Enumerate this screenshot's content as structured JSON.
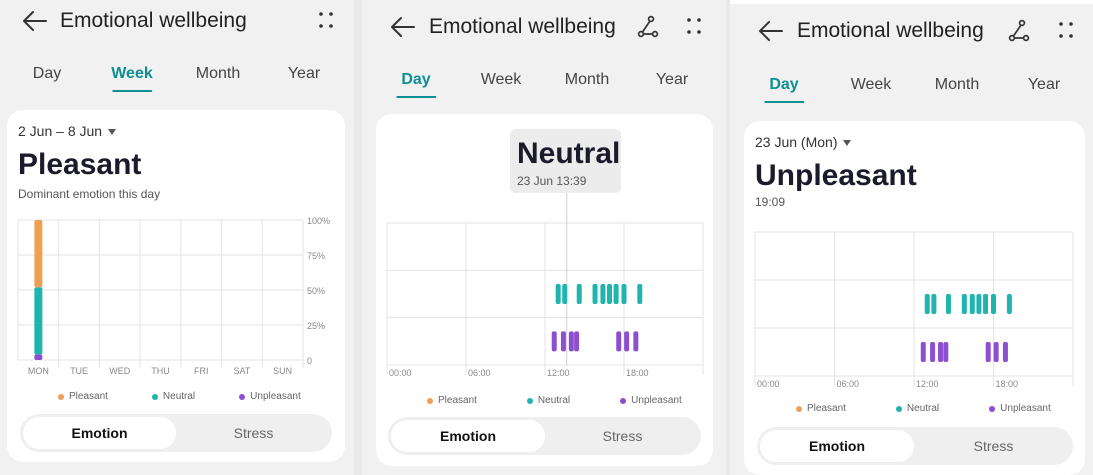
{
  "colors": {
    "pleasant": "#f0a055",
    "neutral": "#1fb5ae",
    "unpleasant": "#8c4fd0",
    "accent": "#0d8f93",
    "grid": "#e3e3e3"
  },
  "icons": {
    "back": "arrow-left-icon",
    "more": "more-dots-icon",
    "share": "share-nodes-icon"
  },
  "panels": [
    {
      "title": "Emotional wellbeing",
      "tabs": [
        "Day",
        "Week",
        "Month",
        "Year"
      ],
      "active_tab": "Week",
      "range": "2 Jun – 8 Jun",
      "emotion": "Pleasant",
      "subtitle": "Dominant emotion this day",
      "legend": [
        "Pleasant",
        "Neutral",
        "Unpleasant"
      ],
      "segment": {
        "on": "Emotion",
        "off": "Stress"
      }
    },
    {
      "title": "Emotional wellbeing",
      "tabs": [
        "Day",
        "Week",
        "Month",
        "Year"
      ],
      "active_tab": "Day",
      "tooltip": {
        "emotion": "Neutral",
        "time": "23 Jun 13:39"
      },
      "legend": [
        "Pleasant",
        "Neutral",
        "Unpleasant"
      ],
      "segment": {
        "on": "Emotion",
        "off": "Stress"
      }
    },
    {
      "title": "Emotional wellbeing",
      "tabs": [
        "Day",
        "Week",
        "Month",
        "Year"
      ],
      "active_tab": "Day",
      "range": "23 Jun (Mon)",
      "emotion": "Unpleasant",
      "subtitle": "19:09",
      "legend": [
        "Pleasant",
        "Neutral",
        "Unpleasant"
      ],
      "segment": {
        "on": "Emotion",
        "off": "Stress"
      }
    }
  ],
  "chart_data": [
    {
      "type": "bar",
      "stacked": true,
      "categories": [
        "MON",
        "TUE",
        "WED",
        "THU",
        "FRI",
        "SAT",
        "SUN"
      ],
      "y_ticks": [
        "100%",
        "75%",
        "50%",
        "25%",
        "0"
      ],
      "ylim": [
        0,
        100
      ],
      "grid": true,
      "legend_position": "bottom",
      "series": [
        {
          "name": "Unpleasant",
          "values": [
            4,
            0,
            0,
            0,
            0,
            0,
            0
          ]
        },
        {
          "name": "Neutral",
          "values": [
            48,
            0,
            0,
            0,
            0,
            0,
            0
          ]
        },
        {
          "name": "Pleasant",
          "values": [
            48,
            0,
            0,
            0,
            0,
            0,
            0
          ]
        }
      ]
    },
    {
      "type": "scatter",
      "x_ticks": [
        "00:00",
        "06:00",
        "12:00",
        "18:00"
      ],
      "xlim_hours": [
        0,
        24
      ],
      "grid": true,
      "legend_position": "bottom",
      "cursor_hour": 13.65,
      "series": [
        {
          "name": "Neutral",
          "hours": [
            13.0,
            13.5,
            14.6,
            15.8,
            16.4,
            16.9,
            17.4,
            18.0,
            19.2
          ]
        },
        {
          "name": "Unpleasant",
          "hours": [
            12.7,
            13.4,
            14.0,
            14.4,
            17.6,
            18.2,
            18.9
          ]
        }
      ]
    },
    {
      "type": "scatter",
      "x_ticks": [
        "00:00",
        "06:00",
        "12:00",
        "18:00"
      ],
      "xlim_hours": [
        0,
        24
      ],
      "grid": true,
      "legend_position": "bottom",
      "series": [
        {
          "name": "Neutral",
          "hours": [
            13.0,
            13.5,
            14.6,
            15.8,
            16.4,
            16.9,
            17.4,
            18.0,
            19.2
          ]
        },
        {
          "name": "Unpleasant",
          "hours": [
            12.7,
            13.4,
            14.0,
            14.4,
            17.6,
            18.2,
            18.9
          ]
        }
      ]
    }
  ]
}
